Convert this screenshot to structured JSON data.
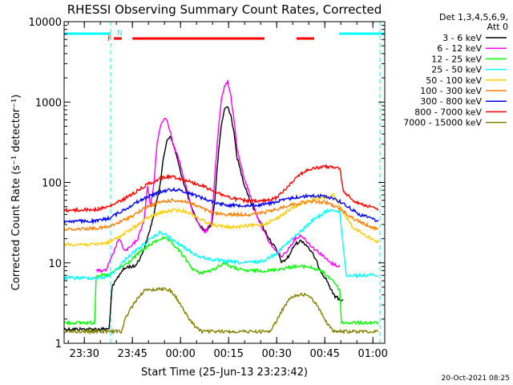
{
  "chart_data": {
    "type": "line",
    "title": "RHESSI Observing Summary Count Rates, Corrected",
    "xlabel": "Start Time (25-Jun-13 23:23:42)",
    "ylabel": "Corrected Count Rate (s⁻¹ detector⁻¹)",
    "x_unit": "minutes after 23:23:42",
    "xlim": [
      0,
      100
    ],
    "ylim": [
      1,
      10000
    ],
    "y_scale": "log",
    "x_ticks": [
      {
        "label": "23:30",
        "x": 6.3
      },
      {
        "label": "23:45",
        "x": 21.3
      },
      {
        "label": "00:00",
        "x": 36.3
      },
      {
        "label": "00:15",
        "x": 51.3
      },
      {
        "label": "00:30",
        "x": 66.3
      },
      {
        "label": "00:45",
        "x": 81.3
      },
      {
        "label": "01:00",
        "x": 96.3
      }
    ],
    "y_ticks": [
      {
        "label": "1",
        "value": 1
      },
      {
        "label": "10",
        "value": 10
      },
      {
        "label": "100",
        "value": 100
      },
      {
        "label": "1000",
        "value": 1000
      },
      {
        "label": "10000",
        "value": 10000
      }
    ],
    "legend_header": [
      "Det 1,3,4,5,6,9,",
      "Att 0"
    ],
    "legend_placement": "top-right outside plot",
    "footer_date": "20-Oct-2021 08:25",
    "flags": {
      "night_label": "N",
      "flare_label": "F",
      "night_color": "#00ffff",
      "flare_color": "#ff0000",
      "night_intervals": [
        [
          0,
          14.5
        ],
        [
          85.8,
          100
        ]
      ],
      "flare_intervals": [
        [
          15.5,
          18
        ],
        [
          21.3,
          62.5
        ],
        [
          72.5,
          78
        ]
      ],
      "dashed_x": [
        14.5,
        98.5
      ]
    },
    "series": [
      {
        "name": "3 - 6 keV",
        "color": "#000000",
        "points": [
          [
            0,
            1.5
          ],
          [
            14,
            1.5
          ],
          [
            15,
            5
          ],
          [
            18,
            8
          ],
          [
            20,
            9
          ],
          [
            22,
            9
          ],
          [
            24,
            12
          ],
          [
            26,
            20
          ],
          [
            28,
            40
          ],
          [
            30,
            100
          ],
          [
            31,
            200
          ],
          [
            32,
            330
          ],
          [
            33,
            380
          ],
          [
            34,
            300
          ],
          [
            35,
            220
          ],
          [
            36,
            150
          ],
          [
            38,
            80
          ],
          [
            40,
            45
          ],
          [
            42,
            30
          ],
          [
            44,
            25
          ],
          [
            46,
            30
          ],
          [
            47,
            60
          ],
          [
            48,
            200
          ],
          [
            49,
            500
          ],
          [
            50,
            820
          ],
          [
            51,
            880
          ],
          [
            52,
            700
          ],
          [
            53,
            400
          ],
          [
            54,
            200
          ],
          [
            56,
            100
          ],
          [
            58,
            60
          ],
          [
            60,
            40
          ],
          [
            62,
            28
          ],
          [
            64,
            20
          ],
          [
            66,
            15
          ],
          [
            68,
            10
          ],
          [
            70,
            12
          ],
          [
            72,
            17
          ],
          [
            74,
            19
          ],
          [
            76,
            16
          ],
          [
            78,
            12
          ],
          [
            80,
            8
          ],
          [
            82,
            6
          ],
          [
            84,
            4
          ],
          [
            86,
            3.5
          ],
          [
            87,
            3.5
          ]
        ]
      },
      {
        "name": "6 - 12 keV",
        "color": "#ff00ff",
        "points": [
          [
            10,
            8
          ],
          [
            13,
            8
          ],
          [
            15,
            12
          ],
          [
            17,
            20
          ],
          [
            19,
            14
          ],
          [
            21,
            16
          ],
          [
            23,
            20
          ],
          [
            25,
            35
          ],
          [
            26,
            90
          ],
          [
            27,
            50
          ],
          [
            28,
            100
          ],
          [
            29,
            300
          ],
          [
            30,
            500
          ],
          [
            31,
            620
          ],
          [
            32,
            620
          ],
          [
            33,
            450
          ],
          [
            34,
            300
          ],
          [
            36,
            180
          ],
          [
            38,
            90
          ],
          [
            40,
            45
          ],
          [
            42,
            30
          ],
          [
            44,
            24
          ],
          [
            46,
            32
          ],
          [
            47,
            120
          ],
          [
            48,
            400
          ],
          [
            49,
            1000
          ],
          [
            50,
            1600
          ],
          [
            51,
            1800
          ],
          [
            52,
            1200
          ],
          [
            53,
            600
          ],
          [
            54,
            250
          ],
          [
            56,
            120
          ],
          [
            58,
            70
          ],
          [
            60,
            40
          ],
          [
            62,
            26
          ],
          [
            64,
            18
          ],
          [
            66,
            14
          ],
          [
            68,
            12
          ],
          [
            70,
            15
          ],
          [
            72,
            20
          ],
          [
            74,
            22
          ],
          [
            76,
            18
          ],
          [
            78,
            15
          ],
          [
            80,
            13
          ],
          [
            83,
            10
          ],
          [
            86,
            9
          ]
        ]
      },
      {
        "name": "12 - 25 keV",
        "color": "#00ff00",
        "points": [
          [
            0,
            1.8
          ],
          [
            9.5,
            1.8
          ],
          [
            10,
            7
          ],
          [
            14,
            7
          ],
          [
            16,
            8
          ],
          [
            20,
            10
          ],
          [
            24,
            14
          ],
          [
            28,
            18
          ],
          [
            30,
            20
          ],
          [
            32,
            20
          ],
          [
            34,
            17
          ],
          [
            36,
            14
          ],
          [
            38,
            11
          ],
          [
            40,
            8.5
          ],
          [
            42,
            7.5
          ],
          [
            46,
            8
          ],
          [
            48,
            9
          ],
          [
            50,
            10
          ],
          [
            52,
            9
          ],
          [
            56,
            8
          ],
          [
            60,
            8
          ],
          [
            64,
            8
          ],
          [
            68,
            8.5
          ],
          [
            72,
            9
          ],
          [
            76,
            9
          ],
          [
            80,
            8
          ],
          [
            84,
            6
          ],
          [
            86,
            4.5
          ],
          [
            86.5,
            1.8
          ],
          [
            98,
            1.8
          ]
        ]
      },
      {
        "name": "25 - 50 keV",
        "color": "#00ffff",
        "points": [
          [
            0,
            6.5
          ],
          [
            12,
            6.5
          ],
          [
            14,
            7
          ],
          [
            16,
            8
          ],
          [
            20,
            12
          ],
          [
            24,
            16
          ],
          [
            28,
            21
          ],
          [
            30,
            24
          ],
          [
            32,
            22
          ],
          [
            34,
            19
          ],
          [
            38,
            15
          ],
          [
            42,
            12
          ],
          [
            46,
            11
          ],
          [
            50,
            10.5
          ],
          [
            56,
            10
          ],
          [
            62,
            10.5
          ],
          [
            66,
            13
          ],
          [
            70,
            18
          ],
          [
            74,
            25
          ],
          [
            78,
            35
          ],
          [
            82,
            44
          ],
          [
            84,
            46
          ],
          [
            86,
            42
          ],
          [
            88,
            7
          ],
          [
            98,
            7
          ]
        ]
      },
      {
        "name": "50 - 100 keV",
        "color": "#ffcc00",
        "points": [
          [
            0,
            17
          ],
          [
            10,
            17
          ],
          [
            14,
            18
          ],
          [
            18,
            22
          ],
          [
            22,
            28
          ],
          [
            26,
            36
          ],
          [
            30,
            42
          ],
          [
            34,
            45
          ],
          [
            38,
            44
          ],
          [
            42,
            36
          ],
          [
            46,
            30
          ],
          [
            50,
            28
          ],
          [
            54,
            28
          ],
          [
            58,
            29
          ],
          [
            62,
            30
          ],
          [
            66,
            35
          ],
          [
            70,
            45
          ],
          [
            74,
            55
          ],
          [
            78,
            62
          ],
          [
            82,
            65
          ],
          [
            84,
            70
          ],
          [
            86,
            50
          ],
          [
            90,
            28
          ],
          [
            94,
            22
          ],
          [
            98,
            18
          ]
        ]
      },
      {
        "name": "100 - 300 keV",
        "color": "#ff8000",
        "points": [
          [
            0,
            26
          ],
          [
            10,
            27
          ],
          [
            14,
            28
          ],
          [
            18,
            33
          ],
          [
            22,
            40
          ],
          [
            26,
            50
          ],
          [
            30,
            57
          ],
          [
            34,
            60
          ],
          [
            38,
            58
          ],
          [
            42,
            50
          ],
          [
            46,
            42
          ],
          [
            50,
            40
          ],
          [
            54,
            40
          ],
          [
            58,
            40
          ],
          [
            62,
            42
          ],
          [
            66,
            46
          ],
          [
            70,
            52
          ],
          [
            74,
            56
          ],
          [
            78,
            58
          ],
          [
            82,
            56
          ],
          [
            86,
            47
          ],
          [
            90,
            36
          ],
          [
            94,
            30
          ],
          [
            98,
            26
          ]
        ]
      },
      {
        "name": "300 - 800 keV",
        "color": "#0000ff",
        "points": [
          [
            0,
            33
          ],
          [
            10,
            33
          ],
          [
            14,
            36
          ],
          [
            18,
            44
          ],
          [
            22,
            55
          ],
          [
            26,
            66
          ],
          [
            30,
            76
          ],
          [
            32,
            80
          ],
          [
            34,
            82
          ],
          [
            36,
            80
          ],
          [
            40,
            72
          ],
          [
            44,
            62
          ],
          [
            48,
            55
          ],
          [
            52,
            52
          ],
          [
            56,
            52
          ],
          [
            60,
            52
          ],
          [
            64,
            55
          ],
          [
            68,
            60
          ],
          [
            72,
            65
          ],
          [
            76,
            68
          ],
          [
            80,
            68
          ],
          [
            84,
            64
          ],
          [
            88,
            52
          ],
          [
            92,
            40
          ],
          [
            96,
            36
          ],
          [
            98,
            33
          ]
        ]
      },
      {
        "name": "800 - 7000 keV",
        "color": "#ff0000",
        "points": [
          [
            0,
            45
          ],
          [
            10,
            46
          ],
          [
            14,
            50
          ],
          [
            18,
            60
          ],
          [
            22,
            75
          ],
          [
            26,
            95
          ],
          [
            30,
            112
          ],
          [
            32,
            118
          ],
          [
            34,
            118
          ],
          [
            36,
            112
          ],
          [
            40,
            100
          ],
          [
            44,
            88
          ],
          [
            48,
            74
          ],
          [
            52,
            64
          ],
          [
            56,
            60
          ],
          [
            60,
            58
          ],
          [
            64,
            60
          ],
          [
            66,
            64
          ],
          [
            68,
            75
          ],
          [
            70,
            92
          ],
          [
            72,
            112
          ],
          [
            74,
            130
          ],
          [
            76,
            142
          ],
          [
            78,
            150
          ],
          [
            82,
            158
          ],
          [
            86,
            150
          ],
          [
            87,
            80
          ],
          [
            90,
            60
          ],
          [
            94,
            52
          ],
          [
            98,
            46
          ]
        ]
      },
      {
        "name": "7000 - 15000 keV",
        "color": "#808000",
        "points": [
          [
            0,
            1.4
          ],
          [
            18,
            1.4
          ],
          [
            19,
            2
          ],
          [
            21,
            2.8
          ],
          [
            23,
            3.7
          ],
          [
            25,
            4.5
          ],
          [
            30,
            4.8
          ],
          [
            33,
            4.6
          ],
          [
            35,
            3.7
          ],
          [
            37,
            2.7
          ],
          [
            39,
            2
          ],
          [
            41,
            1.6
          ],
          [
            43,
            1.4
          ],
          [
            64,
            1.4
          ],
          [
            66,
            1.8
          ],
          [
            68,
            2.6
          ],
          [
            70,
            3.4
          ],
          [
            72,
            4
          ],
          [
            76,
            4
          ],
          [
            78,
            3.3
          ],
          [
            80,
            2.5
          ],
          [
            82,
            1.8
          ],
          [
            84,
            1.4
          ],
          [
            98,
            1.4
          ]
        ]
      }
    ]
  }
}
